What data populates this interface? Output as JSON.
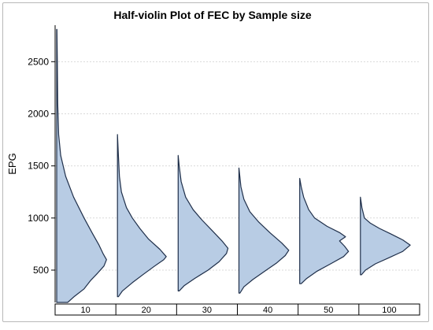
{
  "chart_data": {
    "type": "violin",
    "title": "Half-violin Plot of FEC by Sample size",
    "xlabel": "",
    "ylabel": "EPG",
    "ylim": [
      190,
      2850
    ],
    "yticks": [
      500,
      1000,
      1500,
      2000,
      2500
    ],
    "grid": true,
    "legend": "none",
    "categories": [
      "10",
      "20",
      "30",
      "40",
      "50",
      "100"
    ],
    "colors": {
      "fill": "#b8cce4",
      "outline": "#1f2f4a",
      "grid": "#d9d9d9"
    },
    "violins": [
      {
        "category": "10",
        "min": 190,
        "max": 2810,
        "density": [
          [
            190,
            0.22
          ],
          [
            250,
            0.36
          ],
          [
            320,
            0.55
          ],
          [
            400,
            0.68
          ],
          [
            470,
            0.82
          ],
          [
            540,
            0.95
          ],
          [
            600,
            1.0
          ],
          [
            660,
            0.93
          ],
          [
            740,
            0.85
          ],
          [
            850,
            0.72
          ],
          [
            1000,
            0.55
          ],
          [
            1200,
            0.34
          ],
          [
            1400,
            0.18
          ],
          [
            1600,
            0.08
          ],
          [
            1800,
            0.04
          ],
          [
            2100,
            0.02
          ],
          [
            2500,
            0.012
          ],
          [
            2810,
            0.005
          ]
        ]
      },
      {
        "category": "20",
        "min": 245,
        "max": 1800,
        "density": [
          [
            245,
            0.02
          ],
          [
            300,
            0.1
          ],
          [
            380,
            0.3
          ],
          [
            460,
            0.52
          ],
          [
            540,
            0.75
          ],
          [
            600,
            0.93
          ],
          [
            630,
            0.98
          ],
          [
            700,
            0.85
          ],
          [
            800,
            0.62
          ],
          [
            900,
            0.45
          ],
          [
            1000,
            0.3
          ],
          [
            1100,
            0.18
          ],
          [
            1250,
            0.08
          ],
          [
            1400,
            0.04
          ],
          [
            1600,
            0.02
          ],
          [
            1800,
            0.0
          ]
        ]
      },
      {
        "category": "30",
        "min": 300,
        "max": 1600,
        "density": [
          [
            300,
            0.02
          ],
          [
            350,
            0.12
          ],
          [
            420,
            0.33
          ],
          [
            500,
            0.6
          ],
          [
            580,
            0.82
          ],
          [
            660,
            0.97
          ],
          [
            710,
            1.0
          ],
          [
            780,
            0.88
          ],
          [
            880,
            0.68
          ],
          [
            980,
            0.48
          ],
          [
            1080,
            0.3
          ],
          [
            1200,
            0.15
          ],
          [
            1350,
            0.06
          ],
          [
            1500,
            0.02
          ],
          [
            1600,
            0.0
          ]
        ]
      },
      {
        "category": "40",
        "min": 280,
        "max": 1480,
        "density": [
          [
            280,
            0.02
          ],
          [
            340,
            0.1
          ],
          [
            410,
            0.28
          ],
          [
            490,
            0.52
          ],
          [
            570,
            0.76
          ],
          [
            640,
            0.93
          ],
          [
            690,
            1.0
          ],
          [
            760,
            0.86
          ],
          [
            860,
            0.62
          ],
          [
            960,
            0.4
          ],
          [
            1060,
            0.22
          ],
          [
            1180,
            0.1
          ],
          [
            1300,
            0.04
          ],
          [
            1480,
            0.0
          ]
        ]
      },
      {
        "category": "50",
        "min": 370,
        "max": 1380,
        "density": [
          [
            370,
            0.03
          ],
          [
            420,
            0.14
          ],
          [
            490,
            0.35
          ],
          [
            560,
            0.62
          ],
          [
            630,
            0.88
          ],
          [
            680,
            0.98
          ],
          [
            730,
            0.9
          ],
          [
            780,
            0.8
          ],
          [
            820,
            0.92
          ],
          [
            860,
            0.8
          ],
          [
            920,
            0.55
          ],
          [
            1000,
            0.3
          ],
          [
            1080,
            0.18
          ],
          [
            1200,
            0.08
          ],
          [
            1300,
            0.03
          ],
          [
            1380,
            0.0
          ]
        ]
      },
      {
        "category": "100",
        "min": 455,
        "max": 1200,
        "density": [
          [
            455,
            0.02
          ],
          [
            500,
            0.1
          ],
          [
            560,
            0.3
          ],
          [
            620,
            0.58
          ],
          [
            680,
            0.85
          ],
          [
            740,
            1.0
          ],
          [
            790,
            0.85
          ],
          [
            850,
            0.6
          ],
          [
            900,
            0.38
          ],
          [
            950,
            0.2
          ],
          [
            1000,
            0.08
          ],
          [
            1100,
            0.03
          ],
          [
            1200,
            0.0
          ]
        ]
      }
    ]
  }
}
